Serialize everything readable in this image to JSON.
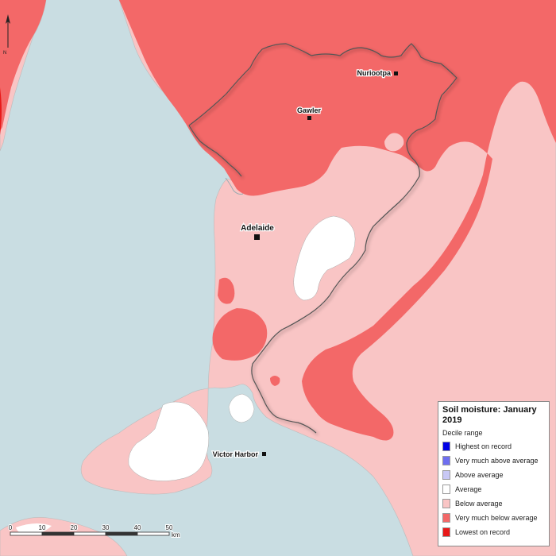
{
  "map": {
    "places": [
      {
        "name": "Nuriootpa"
      },
      {
        "name": "Gawler"
      },
      {
        "name": "Adelaide"
      },
      {
        "name": "Victor Harbor"
      }
    ],
    "scale_bar": {
      "ticks": [
        "0",
        "10",
        "20",
        "30",
        "40",
        "50"
      ],
      "unit": "km"
    },
    "north_arrow_label": "N"
  },
  "legend": {
    "title": "Soil moisture: January 2019",
    "subtitle": "Decile range",
    "items": [
      {
        "label": "Highest on record",
        "color": "#0000e6"
      },
      {
        "label": "Very much above average",
        "color": "#6e6ef0"
      },
      {
        "label": "Above average",
        "color": "#c8c8f5"
      },
      {
        "label": "Average",
        "color": "#ffffff"
      },
      {
        "label": "Below average",
        "color": "#f9c5c5"
      },
      {
        "label": "Very much below average",
        "color": "#f36868"
      },
      {
        "label": "Lowest on record",
        "color": "#e81919"
      }
    ]
  },
  "colors": {
    "sea": "#c9dde2",
    "boundary": "#555555"
  }
}
